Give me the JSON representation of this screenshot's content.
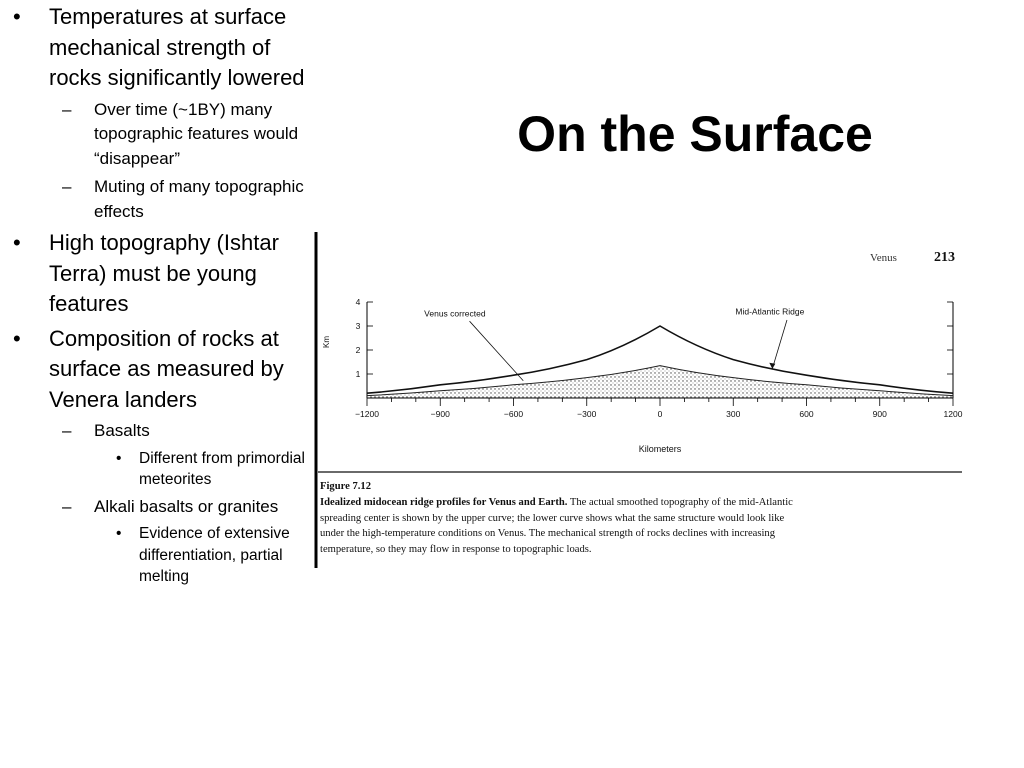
{
  "slide": {
    "title": "On the Surface",
    "bullets": [
      {
        "level": 1,
        "text": "Temperatures at surface mechanical strength of rocks significantly lowered"
      },
      {
        "level": 2,
        "text": "Over time (~1BY) many topographic features would “disappear”"
      },
      {
        "level": 2,
        "text": "Muting of many topographic effects"
      },
      {
        "level": 1,
        "text": "High topography (Ishtar Terra) must be young features"
      },
      {
        "level": 1,
        "text": "Composition of rocks at surface as measured by Venera landers"
      },
      {
        "level": 2,
        "text": "Basalts"
      },
      {
        "level": 3,
        "text": "Different from primordial meteorites"
      },
      {
        "level": 2,
        "text": "Alkali basalts or granites"
      },
      {
        "level": 3,
        "text": "Evidence of extensive differentiation, partial melting"
      }
    ],
    "markers": {
      "level1": "•",
      "level2": "–",
      "level3": "•"
    }
  },
  "figure": {
    "page_header": "Venus",
    "page_number": "213",
    "figure_label": "Figure 7.12",
    "caption_bold": "Idealized midocean ridge profiles for Venus and Earth.",
    "caption_rest": " The actual smoothed topography of the mid-Atlantic spreading center is shown by the upper curve; the lower curve shows what the same structure would look like under the high-temperature conditions on Venus. The mechanical strength of rocks declines with increasing temperature, so they may flow in response to topographic loads."
  },
  "chart_data": {
    "type": "area",
    "xlabel": "Kilometers",
    "ylabel": "Km",
    "xlim": [
      -1200,
      1200
    ],
    "ylim": [
      0,
      4
    ],
    "x_tick_labels": [
      "−1200",
      "−900",
      "−600",
      "−300",
      "0",
      "300",
      "600",
      "900",
      "1200"
    ],
    "y_tick_labels": [
      "1",
      "2",
      "3",
      "4"
    ],
    "series": [
      {
        "name": "Mid-Atlantic Ridge",
        "x": [
          -1200,
          -900,
          -600,
          -300,
          0,
          300,
          600,
          900,
          1200
        ],
        "y": [
          0.2,
          0.55,
          0.95,
          1.6,
          3.0,
          1.6,
          0.95,
          0.55,
          0.2
        ]
      },
      {
        "name": "Venus corrected",
        "x": [
          -1200,
          -900,
          -600,
          -300,
          0,
          300,
          600,
          900,
          1200
        ],
        "y": [
          0.1,
          0.3,
          0.55,
          0.85,
          1.35,
          0.85,
          0.55,
          0.3,
          0.1
        ]
      }
    ],
    "annotations": [
      {
        "text": "Venus corrected",
        "series": "Venus corrected"
      },
      {
        "text": "Mid-Atlantic Ridge",
        "series": "Mid-Atlantic Ridge"
      }
    ],
    "grid": false,
    "legend": "none"
  }
}
